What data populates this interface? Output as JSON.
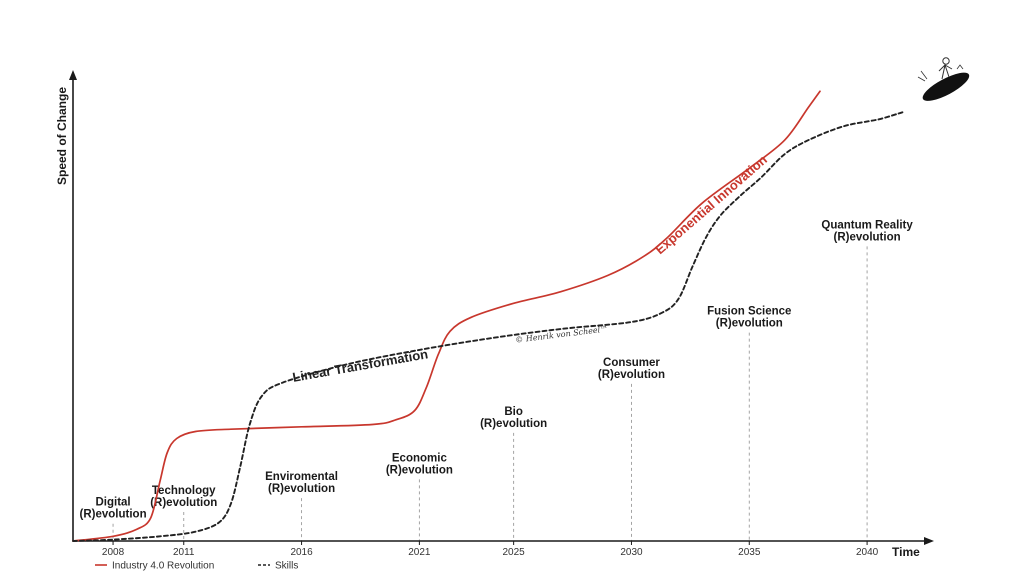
{
  "chart_data": {
    "type": "line",
    "title": "",
    "xlabel": "Time",
    "ylabel": "Speed of Change",
    "x_ticks": [
      "2008",
      "2011",
      "2016",
      "2021",
      "2025",
      "2030",
      "2035",
      "2040"
    ],
    "x_tick_values": [
      2008,
      2011,
      2016,
      2021,
      2025,
      2030,
      2035,
      2040
    ],
    "xlim": [
      2006.3,
      2042.5
    ],
    "ylim": [
      0,
      100
    ],
    "grid": false,
    "legend_position": "bottom-left",
    "series": [
      {
        "name": "Industry 4.0 Revolution",
        "color": "#c8372d",
        "style": "solid",
        "curve_label": "Exponential Innovation",
        "points": [
          [
            2006.3,
            0
          ],
          [
            2008,
            1
          ],
          [
            2009,
            2.5
          ],
          [
            2009.6,
            5
          ],
          [
            2010.0,
            13
          ],
          [
            2010.3,
            19
          ],
          [
            2010.7,
            22
          ],
          [
            2011.5,
            23.5
          ],
          [
            2013,
            24
          ],
          [
            2016,
            24.5
          ],
          [
            2019,
            25
          ],
          [
            2020,
            26
          ],
          [
            2020.8,
            28
          ],
          [
            2021.3,
            33
          ],
          [
            2021.8,
            40
          ],
          [
            2022.3,
            45
          ],
          [
            2023.2,
            48
          ],
          [
            2025,
            51
          ],
          [
            2027,
            53.5
          ],
          [
            2029,
            57
          ],
          [
            2030.5,
            61
          ],
          [
            2031.5,
            65
          ],
          [
            2033,
            72.5
          ],
          [
            2035,
            80
          ],
          [
            2036.5,
            86
          ],
          [
            2037.5,
            93
          ],
          [
            2038.0,
            96.5
          ]
        ]
      },
      {
        "name": "Skills",
        "color": "#222222",
        "style": "dashed",
        "curve_label": "Linear Transformation",
        "points": [
          [
            2006.3,
            0
          ],
          [
            2008,
            0.3
          ],
          [
            2010,
            1
          ],
          [
            2011.5,
            2
          ],
          [
            2012.5,
            4
          ],
          [
            2013.0,
            8
          ],
          [
            2013.4,
            16
          ],
          [
            2013.8,
            25
          ],
          [
            2014.3,
            31
          ],
          [
            2015.2,
            34
          ],
          [
            2018,
            38
          ],
          [
            2021,
            41
          ],
          [
            2024,
            43.5
          ],
          [
            2027,
            45.5
          ],
          [
            2030,
            47
          ],
          [
            2031.3,
            49
          ],
          [
            2032.0,
            52
          ],
          [
            2032.6,
            59
          ],
          [
            2033.2,
            65.5
          ],
          [
            2033.8,
            70
          ],
          [
            2034.6,
            74
          ],
          [
            2035.5,
            78
          ],
          [
            2036.5,
            83
          ],
          [
            2037.5,
            86
          ],
          [
            2039.0,
            89
          ],
          [
            2040.5,
            90.5
          ],
          [
            2041.5,
            92
          ]
        ]
      }
    ],
    "annotations": [
      {
        "line1": "Digital",
        "line2": "(R)evolution",
        "x": 2008,
        "y": 5
      },
      {
        "line1": "Technology",
        "line2": "(R)evolution",
        "x": 2011,
        "y": 7.5
      },
      {
        "line1": "Enviromental",
        "line2": "(R)evolution",
        "x": 2016,
        "y": 10.5
      },
      {
        "line1": "Economic",
        "line2": "(R)evolution",
        "x": 2021,
        "y": 14.5
      },
      {
        "line1": "Bio",
        "line2": "(R)evolution",
        "x": 2025,
        "y": 24.5
      },
      {
        "line1": "Consumer",
        "line2": "(R)evolution",
        "x": 2030,
        "y": 35
      },
      {
        "line1": "Fusion Science",
        "line2": "(R)evolution",
        "x": 2035,
        "y": 46
      },
      {
        "line1": "Quantum Reality",
        "line2": "(R)evolution",
        "x": 2040,
        "y": 64.5
      }
    ],
    "copyright": "© Henrik von Scheel™"
  },
  "colors": {
    "axis": "#1a1a1a",
    "industry": "#c8372d",
    "skills": "#222222",
    "guide": "#9a9a9a"
  },
  "icons": [
    "surfer-icon"
  ]
}
